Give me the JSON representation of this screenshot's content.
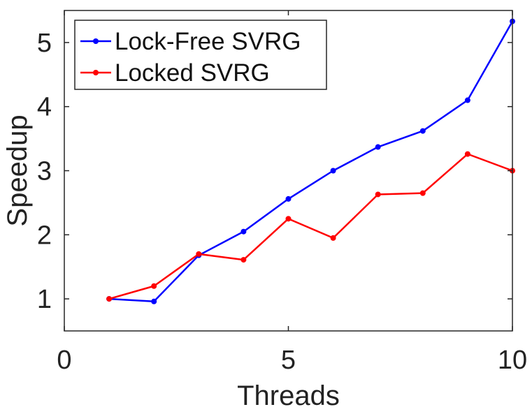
{
  "chart_data": {
    "type": "line",
    "title": "",
    "xlabel": "Threads",
    "ylabel": "Speedup",
    "xlim": [
      0,
      10
    ],
    "ylim": [
      0.5,
      5.5
    ],
    "xticks": [
      0,
      5,
      10
    ],
    "yticks": [
      1,
      2,
      3,
      4,
      5
    ],
    "grid": false,
    "legend_position": "top-left",
    "x": [
      1,
      2,
      3,
      4,
      5,
      6,
      7,
      8,
      9,
      10
    ],
    "series": [
      {
        "name": "Lock-Free SVRG",
        "color": "#0000ff",
        "values": [
          1.0,
          0.96,
          1.68,
          2.05,
          2.56,
          3.0,
          3.37,
          3.62,
          4.1,
          5.33
        ]
      },
      {
        "name": "Locked SVRG",
        "color": "#ff0000",
        "values": [
          1.0,
          1.2,
          1.7,
          1.61,
          2.25,
          1.95,
          2.63,
          2.65,
          3.26,
          3.0
        ]
      }
    ]
  }
}
